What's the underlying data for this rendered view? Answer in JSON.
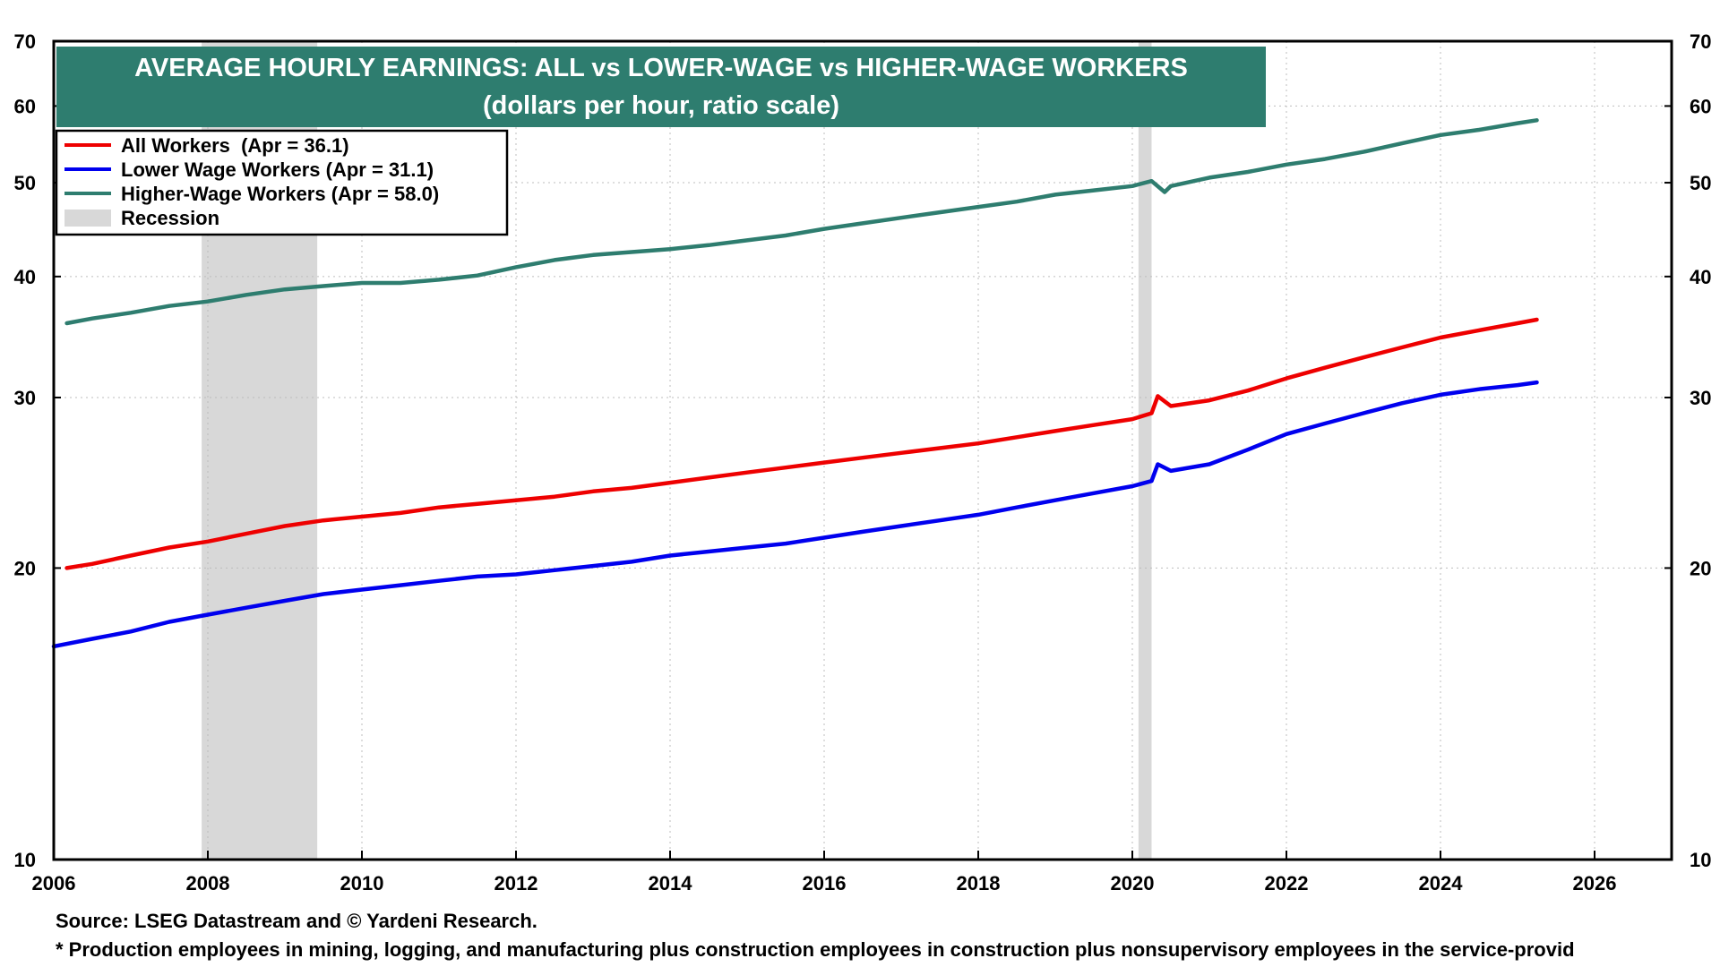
{
  "chart_data": {
    "type": "line",
    "title": "AVERAGE HOURLY EARNINGS: ALL vs LOWER-WAGE vs HIGHER-WAGE WORKERS",
    "subtitle": "(dollars per hour, ratio scale)",
    "scale": "log",
    "xlim": [
      2006,
      2027
    ],
    "ylim": [
      10,
      70
    ],
    "x_ticks": [
      2006,
      2008,
      2010,
      2012,
      2014,
      2016,
      2018,
      2020,
      2022,
      2024,
      2026
    ],
    "y_ticks": [
      10,
      20,
      30,
      40,
      50,
      60,
      70
    ],
    "grid": true,
    "legend_position": "top-left",
    "recessions": [
      {
        "start": 2007.92,
        "end": 2009.42
      },
      {
        "start": 2020.08,
        "end": 2020.25
      }
    ],
    "series": [
      {
        "name": "All Workers  (Apr = 36.1)",
        "color": "#ee0000",
        "points": [
          [
            2006.17,
            20.0
          ],
          [
            2006.5,
            20.2
          ],
          [
            2007.0,
            20.6
          ],
          [
            2007.5,
            21.0
          ],
          [
            2008.0,
            21.3
          ],
          [
            2008.5,
            21.7
          ],
          [
            2009.0,
            22.1
          ],
          [
            2009.5,
            22.4
          ],
          [
            2010.0,
            22.6
          ],
          [
            2010.5,
            22.8
          ],
          [
            2011.0,
            23.1
          ],
          [
            2011.5,
            23.3
          ],
          [
            2012.0,
            23.5
          ],
          [
            2012.5,
            23.7
          ],
          [
            2013.0,
            24.0
          ],
          [
            2013.5,
            24.2
          ],
          [
            2014.0,
            24.5
          ],
          [
            2014.5,
            24.8
          ],
          [
            2015.0,
            25.1
          ],
          [
            2015.5,
            25.4
          ],
          [
            2016.0,
            25.7
          ],
          [
            2016.5,
            26.0
          ],
          [
            2017.0,
            26.3
          ],
          [
            2017.5,
            26.6
          ],
          [
            2018.0,
            26.9
          ],
          [
            2018.5,
            27.3
          ],
          [
            2019.0,
            27.7
          ],
          [
            2019.5,
            28.1
          ],
          [
            2020.0,
            28.5
          ],
          [
            2020.25,
            28.9
          ],
          [
            2020.33,
            30.1
          ],
          [
            2020.5,
            29.4
          ],
          [
            2021.0,
            29.8
          ],
          [
            2021.5,
            30.5
          ],
          [
            2022.0,
            31.4
          ],
          [
            2022.5,
            32.2
          ],
          [
            2023.0,
            33.0
          ],
          [
            2023.5,
            33.8
          ],
          [
            2024.0,
            34.6
          ],
          [
            2024.5,
            35.2
          ],
          [
            2025.0,
            35.8
          ],
          [
            2025.25,
            36.1
          ]
        ]
      },
      {
        "name": "Lower Wage Workers (Apr = 31.1)",
        "color": "#0000ee",
        "points": [
          [
            2006.0,
            16.6
          ],
          [
            2006.5,
            16.9
          ],
          [
            2007.0,
            17.2
          ],
          [
            2007.5,
            17.6
          ],
          [
            2008.0,
            17.9
          ],
          [
            2008.5,
            18.2
          ],
          [
            2009.0,
            18.5
          ],
          [
            2009.5,
            18.8
          ],
          [
            2010.0,
            19.0
          ],
          [
            2010.5,
            19.2
          ],
          [
            2011.0,
            19.4
          ],
          [
            2011.5,
            19.6
          ],
          [
            2012.0,
            19.7
          ],
          [
            2012.5,
            19.9
          ],
          [
            2013.0,
            20.1
          ],
          [
            2013.5,
            20.3
          ],
          [
            2014.0,
            20.6
          ],
          [
            2014.5,
            20.8
          ],
          [
            2015.0,
            21.0
          ],
          [
            2015.5,
            21.2
          ],
          [
            2016.0,
            21.5
          ],
          [
            2016.5,
            21.8
          ],
          [
            2017.0,
            22.1
          ],
          [
            2017.5,
            22.4
          ],
          [
            2018.0,
            22.7
          ],
          [
            2018.5,
            23.1
          ],
          [
            2019.0,
            23.5
          ],
          [
            2019.5,
            23.9
          ],
          [
            2020.0,
            24.3
          ],
          [
            2020.25,
            24.6
          ],
          [
            2020.33,
            25.6
          ],
          [
            2020.5,
            25.2
          ],
          [
            2021.0,
            25.6
          ],
          [
            2021.5,
            26.5
          ],
          [
            2022.0,
            27.5
          ],
          [
            2022.5,
            28.2
          ],
          [
            2023.0,
            28.9
          ],
          [
            2023.5,
            29.6
          ],
          [
            2024.0,
            30.2
          ],
          [
            2024.5,
            30.6
          ],
          [
            2025.0,
            30.9
          ],
          [
            2025.25,
            31.1
          ]
        ]
      },
      {
        "name": "Higher-Wage Workers (Apr = 58.0)",
        "color": "#2e7d6f",
        "points": [
          [
            2006.17,
            35.8
          ],
          [
            2006.5,
            36.2
          ],
          [
            2007.0,
            36.7
          ],
          [
            2007.5,
            37.3
          ],
          [
            2008.0,
            37.7
          ],
          [
            2008.5,
            38.3
          ],
          [
            2009.0,
            38.8
          ],
          [
            2009.5,
            39.1
          ],
          [
            2010.0,
            39.4
          ],
          [
            2010.5,
            39.4
          ],
          [
            2011.0,
            39.7
          ],
          [
            2011.5,
            40.1
          ],
          [
            2012.0,
            40.9
          ],
          [
            2012.5,
            41.6
          ],
          [
            2013.0,
            42.1
          ],
          [
            2013.5,
            42.4
          ],
          [
            2014.0,
            42.7
          ],
          [
            2014.5,
            43.1
          ],
          [
            2015.0,
            43.6
          ],
          [
            2015.5,
            44.1
          ],
          [
            2016.0,
            44.8
          ],
          [
            2016.5,
            45.4
          ],
          [
            2017.0,
            46.0
          ],
          [
            2017.5,
            46.6
          ],
          [
            2018.0,
            47.2
          ],
          [
            2018.5,
            47.8
          ],
          [
            2019.0,
            48.6
          ],
          [
            2019.5,
            49.1
          ],
          [
            2020.0,
            49.6
          ],
          [
            2020.25,
            50.2
          ],
          [
            2020.42,
            48.9
          ],
          [
            2020.5,
            49.6
          ],
          [
            2021.0,
            50.6
          ],
          [
            2021.5,
            51.3
          ],
          [
            2022.0,
            52.2
          ],
          [
            2022.5,
            52.9
          ],
          [
            2023.0,
            53.8
          ],
          [
            2023.5,
            54.9
          ],
          [
            2024.0,
            56.0
          ],
          [
            2024.5,
            56.7
          ],
          [
            2025.0,
            57.6
          ],
          [
            2025.25,
            58.0
          ]
        ]
      }
    ],
    "legend_recession_label": "Recession",
    "recession_color": "#d8d8d8"
  },
  "footer": {
    "source": "Source: LSEG Datastream and © Yardeni Research.",
    "note": "* Production employees in mining, logging, and manufacturing plus construction employees in construction plus nonsupervisory employees in the service-provid"
  },
  "colors": {
    "title_bg": "#2e7d6f",
    "grid": "#bdbdbd"
  }
}
